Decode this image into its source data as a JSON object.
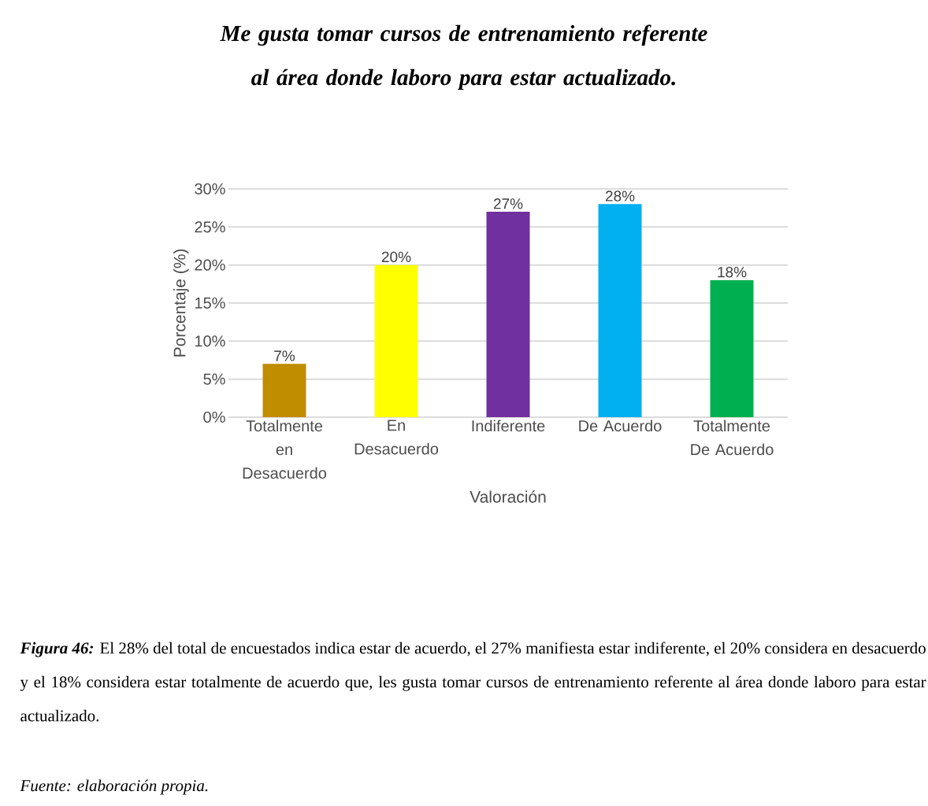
{
  "chart_data": {
    "type": "bar",
    "title": "Me gusta tomar cursos de entrenamiento referente al área donde laboro para estar actualizado.",
    "categories": [
      "Totalmente en Desacuerdo",
      "En Desacuerdo",
      "Indiferente",
      "De Acuerdo",
      "Totalmente De Acuerdo"
    ],
    "values": [
      7,
      20,
      27,
      28,
      18
    ],
    "colors": [
      "#c08c00",
      "#ffff00",
      "#7030a0",
      "#00b0f0",
      "#00b050"
    ],
    "value_labels": [
      "7%",
      "20%",
      "27%",
      "28%",
      "18%"
    ],
    "xlabel": "Valoración",
    "ylabel": "Porcentaje (%)",
    "ylim": [
      0,
      30
    ],
    "yticks": [
      {
        "value": 0,
        "label": "0%"
      },
      {
        "value": 5,
        "label": "5%"
      },
      {
        "value": 10,
        "label": "10%"
      },
      {
        "value": 15,
        "label": "15%"
      },
      {
        "value": 20,
        "label": "20%"
      },
      {
        "value": 25,
        "label": "25%"
      },
      {
        "value": 30,
        "label": "30%"
      }
    ],
    "grid": "y",
    "annotations": [
      "Figura 46:",
      "El 28% del total de encuestados indica estar de acuerdo, el 27% manifiesta estar indiferente, el 20% considera en desacuerdo y el 18% considera estar totalmente de acuerdo que, les gusta tomar cursos de entrenamiento referente al área donde laboro para estar actualizado.",
      "Fuente: elaboración propia."
    ]
  }
}
